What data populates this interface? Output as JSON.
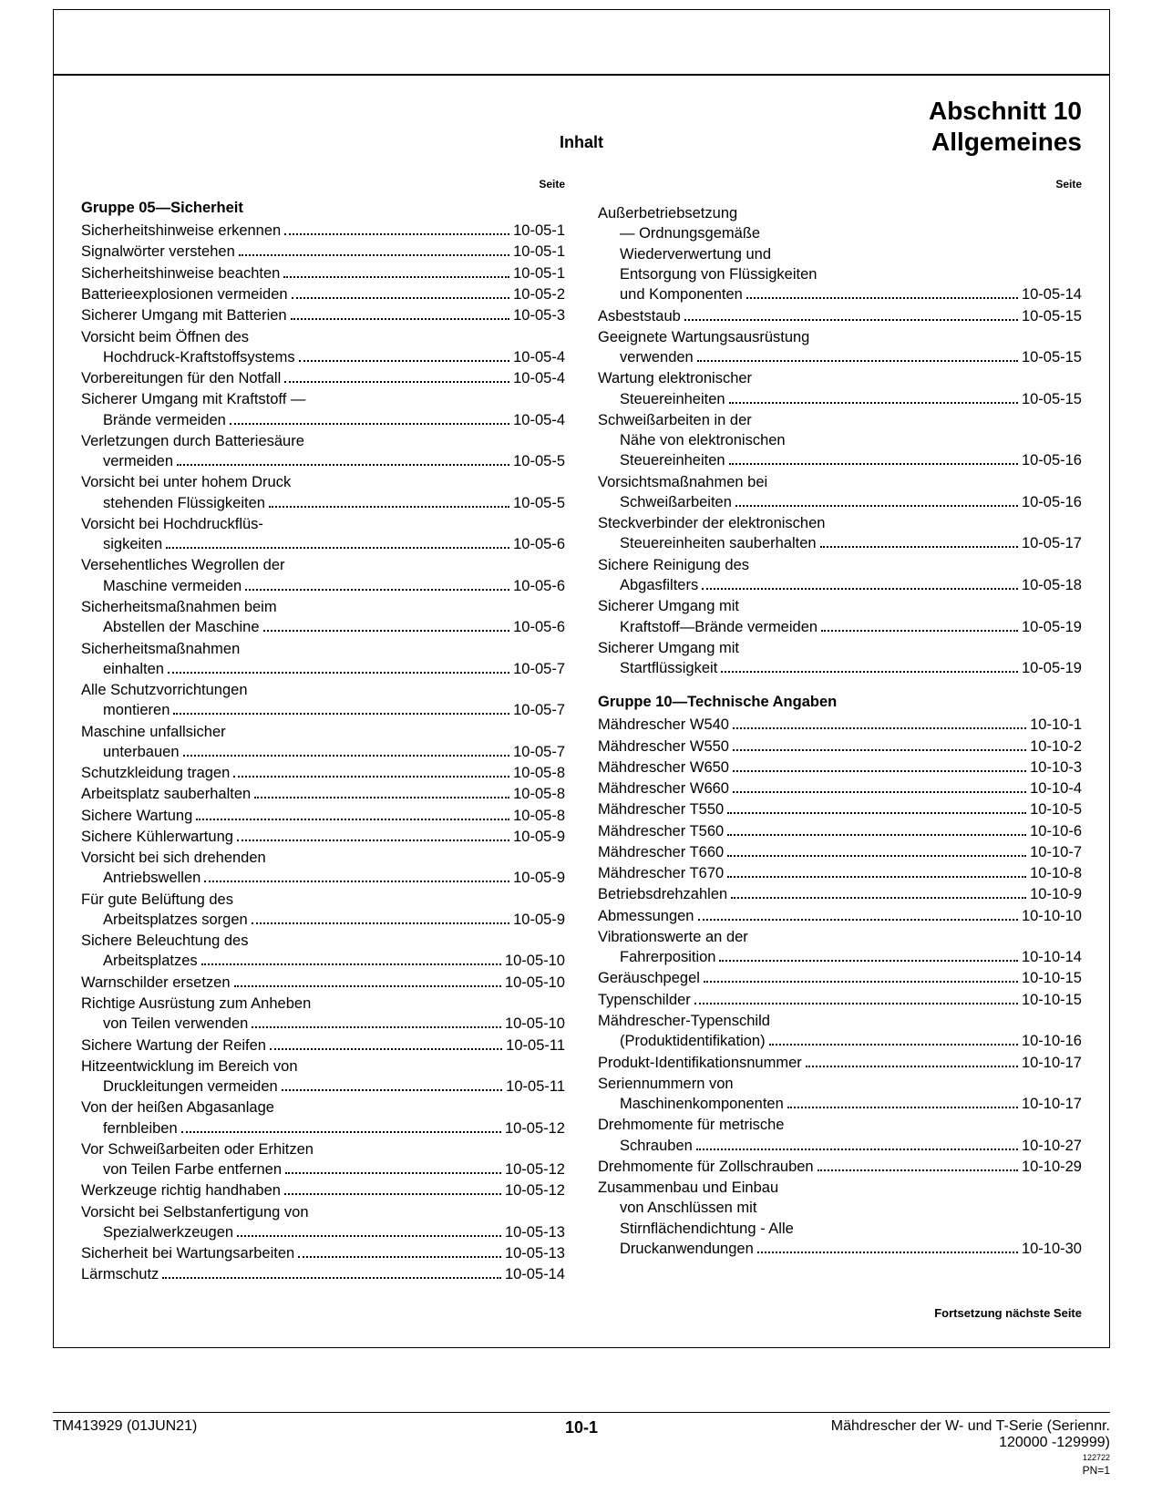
{
  "header": {
    "section_line1": "Abschnitt 10",
    "section_line2": "Allgemeines",
    "inhalt": "Inhalt",
    "seite": "Seite"
  },
  "groups": {
    "g05_title": "Gruppe 05—Sicherheit",
    "g10_title": "Gruppe 10—Technische Angaben"
  },
  "col1": [
    {
      "lines": [
        "Sicherheitshinweise erkennen"
      ],
      "page": "10-05-1"
    },
    {
      "lines": [
        "Signalwörter verstehen"
      ],
      "page": "10-05-1"
    },
    {
      "lines": [
        "Sicherheitshinweise beachten"
      ],
      "page": "10-05-1"
    },
    {
      "lines": [
        "Batterieexplosionen vermeiden"
      ],
      "page": "10-05-2"
    },
    {
      "lines": [
        "Sicherer Umgang mit Batterien"
      ],
      "page": "10-05-3"
    },
    {
      "lines": [
        "Vorsicht beim Öffnen des",
        "Hochdruck-Kraftstoffsystems"
      ],
      "page": "10-05-4"
    },
    {
      "lines": [
        "Vorbereitungen für den Notfall"
      ],
      "page": "10-05-4"
    },
    {
      "lines": [
        "Sicherer Umgang mit Kraftstoff —",
        "Brände vermeiden"
      ],
      "page": "10-05-4"
    },
    {
      "lines": [
        "Verletzungen durch Batteriesäure",
        "vermeiden"
      ],
      "page": "10-05-5"
    },
    {
      "lines": [
        "Vorsicht bei unter hohem Druck",
        "stehenden Flüssigkeiten"
      ],
      "page": "10-05-5"
    },
    {
      "lines": [
        "Vorsicht bei Hochdruckflüs-",
        "sigkeiten"
      ],
      "page": "10-05-6"
    },
    {
      "lines": [
        "Versehentliches Wegrollen der",
        "Maschine vermeiden"
      ],
      "page": "10-05-6"
    },
    {
      "lines": [
        "Sicherheitsmaßnahmen beim",
        "Abstellen der Maschine"
      ],
      "page": "10-05-6"
    },
    {
      "lines": [
        "Sicherheitsmaßnahmen",
        "einhalten"
      ],
      "page": "10-05-7"
    },
    {
      "lines": [
        "Alle Schutzvorrichtungen",
        "montieren"
      ],
      "page": "10-05-7"
    },
    {
      "lines": [
        "Maschine unfallsicher",
        "unterbauen"
      ],
      "page": "10-05-7"
    },
    {
      "lines": [
        "Schutzkleidung tragen"
      ],
      "page": "10-05-8"
    },
    {
      "lines": [
        "Arbeitsplatz sauberhalten"
      ],
      "page": "10-05-8"
    },
    {
      "lines": [
        "Sichere Wartung"
      ],
      "page": "10-05-8"
    },
    {
      "lines": [
        "Sichere Kühlerwartung"
      ],
      "page": "10-05-9"
    },
    {
      "lines": [
        "Vorsicht bei sich drehenden",
        "Antriebswellen"
      ],
      "page": "10-05-9"
    },
    {
      "lines": [
        "Für gute Belüftung des",
        "Arbeitsplatzes sorgen"
      ],
      "page": "10-05-9"
    },
    {
      "lines": [
        "Sichere Beleuchtung des",
        "Arbeitsplatzes"
      ],
      "page": "10-05-10"
    },
    {
      "lines": [
        "Warnschilder ersetzen"
      ],
      "page": "10-05-10"
    },
    {
      "lines": [
        "Richtige Ausrüstung zum Anheben",
        "von Teilen verwenden"
      ],
      "page": "10-05-10"
    },
    {
      "lines": [
        "Sichere Wartung der Reifen"
      ],
      "page": "10-05-11"
    },
    {
      "lines": [
        "Hitzeentwicklung im Bereich von",
        "Druckleitungen vermeiden"
      ],
      "page": "10-05-11"
    },
    {
      "lines": [
        "Von der heißen Abgasanlage",
        "fernbleiben"
      ],
      "page": "10-05-12"
    },
    {
      "lines": [
        "Vor Schweißarbeiten oder Erhitzen",
        "von Teilen Farbe entfernen"
      ],
      "page": "10-05-12"
    },
    {
      "lines": [
        "Werkzeuge richtig handhaben"
      ],
      "page": "10-05-12"
    },
    {
      "lines": [
        "Vorsicht bei Selbstanfertigung von",
        "Spezialwerkzeugen"
      ],
      "page": "10-05-13"
    },
    {
      "lines": [
        "Sicherheit bei Wartungsarbeiten"
      ],
      "page": "10-05-13"
    },
    {
      "lines": [
        "Lärmschutz"
      ],
      "page": "10-05-14"
    }
  ],
  "col2a": [
    {
      "lines": [
        "Außerbetriebsetzung",
        "— Ordnungsgemäße",
        "Wiederverwertung und",
        "Entsorgung von Flüssigkeiten",
        "und Komponenten"
      ],
      "page": "10-05-14"
    },
    {
      "lines": [
        "Asbeststaub"
      ],
      "page": "10-05-15"
    },
    {
      "lines": [
        "Geeignete Wartungsausrüstung",
        "verwenden"
      ],
      "page": "10-05-15"
    },
    {
      "lines": [
        "Wartung elektronischer",
        "Steuereinheiten"
      ],
      "page": "10-05-15"
    },
    {
      "lines": [
        "Schweißarbeiten in der",
        "Nähe von elektronischen",
        "Steuereinheiten"
      ],
      "page": "10-05-16"
    },
    {
      "lines": [
        "Vorsichtsmaßnahmen bei",
        "Schweißarbeiten"
      ],
      "page": "10-05-16"
    },
    {
      "lines": [
        "Steckverbinder der elektronischen",
        "Steuereinheiten sauberhalten"
      ],
      "page": "10-05-17"
    },
    {
      "lines": [
        "Sichere Reinigung des",
        "Abgasfilters"
      ],
      "page": "10-05-18"
    },
    {
      "lines": [
        "Sicherer Umgang mit",
        "Kraftstoff—Brände vermeiden"
      ],
      "page": "10-05-19"
    },
    {
      "lines": [
        "Sicherer Umgang mit",
        "Startflüssigkeit"
      ],
      "page": "10-05-19"
    }
  ],
  "col2b": [
    {
      "lines": [
        "Mähdrescher W540"
      ],
      "page": "10-10-1"
    },
    {
      "lines": [
        "Mähdrescher W550"
      ],
      "page": "10-10-2"
    },
    {
      "lines": [
        "Mähdrescher W650"
      ],
      "page": "10-10-3"
    },
    {
      "lines": [
        "Mähdrescher W660"
      ],
      "page": "10-10-4"
    },
    {
      "lines": [
        "Mähdrescher T550"
      ],
      "page": "10-10-5"
    },
    {
      "lines": [
        "Mähdrescher T560"
      ],
      "page": "10-10-6"
    },
    {
      "lines": [
        "Mähdrescher T660"
      ],
      "page": "10-10-7"
    },
    {
      "lines": [
        "Mähdrescher T670"
      ],
      "page": "10-10-8"
    },
    {
      "lines": [
        "Betriebsdrehzahlen"
      ],
      "page": "10-10-9"
    },
    {
      "lines": [
        "Abmessungen"
      ],
      "page": "10-10-10"
    },
    {
      "lines": [
        "Vibrationswerte an der",
        "Fahrerposition"
      ],
      "page": "10-10-14"
    },
    {
      "lines": [
        "Geräuschpegel"
      ],
      "page": "10-10-15"
    },
    {
      "lines": [
        "Typenschilder"
      ],
      "page": "10-10-15"
    },
    {
      "lines": [
        "Mähdrescher-Typenschild",
        "(Produktidentifikation)"
      ],
      "page": "10-10-16"
    },
    {
      "lines": [
        "Produkt-Identifikationsnummer"
      ],
      "page": "10-10-17"
    },
    {
      "lines": [
        "Seriennummern von",
        "Maschinenkomponenten"
      ],
      "page": "10-10-17"
    },
    {
      "lines": [
        "Drehmomente für metrische",
        "Schrauben"
      ],
      "page": "10-10-27"
    },
    {
      "lines": [
        "Drehmomente für Zollschrauben"
      ],
      "page": "10-10-29"
    },
    {
      "lines": [
        "Zusammenbau und Einbau",
        "von Anschlüssen mit",
        "Stirnflächendichtung - Alle",
        "Druckanwendungen"
      ],
      "page": "10-10-30"
    }
  ],
  "continue_text": "Fortsetzung nächste Seite",
  "footer": {
    "left": "TM413929 (01JUN21)",
    "center": "10-1",
    "right1": "Mähdrescher der W- und T-Serie (Seriennr.",
    "right2": "120000 -129999)",
    "tiny": "122722",
    "pn": "PN=1"
  }
}
